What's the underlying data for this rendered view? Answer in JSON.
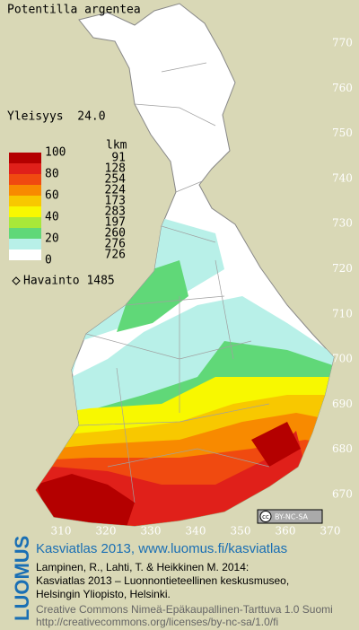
{
  "header": {
    "title": "Potentilla argentea",
    "frequency": "Yleisyys  24.0"
  },
  "legend": {
    "count_header": "lkm",
    "scale": [
      100,
      80,
      60,
      40,
      20,
      0
    ],
    "counts": [
      91,
      128,
      254,
      224,
      173,
      283,
      197,
      260,
      276,
      726
    ],
    "colors": [
      "#b40000",
      "#e0201a",
      "#f04a10",
      "#f88a00",
      "#f8c800",
      "#f8f800",
      "#a8e838",
      "#60d878",
      "#b8f0e8",
      "#ffffff"
    ],
    "observations": "Havainto 1485"
  },
  "grid": {
    "north": [
      770,
      760,
      750,
      740,
      730,
      720,
      710,
      700,
      690,
      680,
      670
    ],
    "east": [
      310,
      320,
      330,
      340,
      350,
      360,
      370
    ]
  },
  "license_badge": "BY-NC-SA",
  "footer": {
    "brand": "LUOMUS",
    "link": "Kasviatlas 2013, www.luomus.fi/kasviatlas",
    "citation": [
      "Lampinen, R., Lahti, T. & Heikkinen M. 2014:",
      "Kasviatlas 2013 – Luonnontieteellinen keskusmuseo,",
      "Helsingin Yliopisto, Helsinki."
    ],
    "license": [
      "Creative Commons Nimeä-Epäkaupallinen-Tarttuva 1.0 Suomi",
      "http://creativecommons.org/licenses/by-nc-sa/1.0/fi"
    ]
  }
}
